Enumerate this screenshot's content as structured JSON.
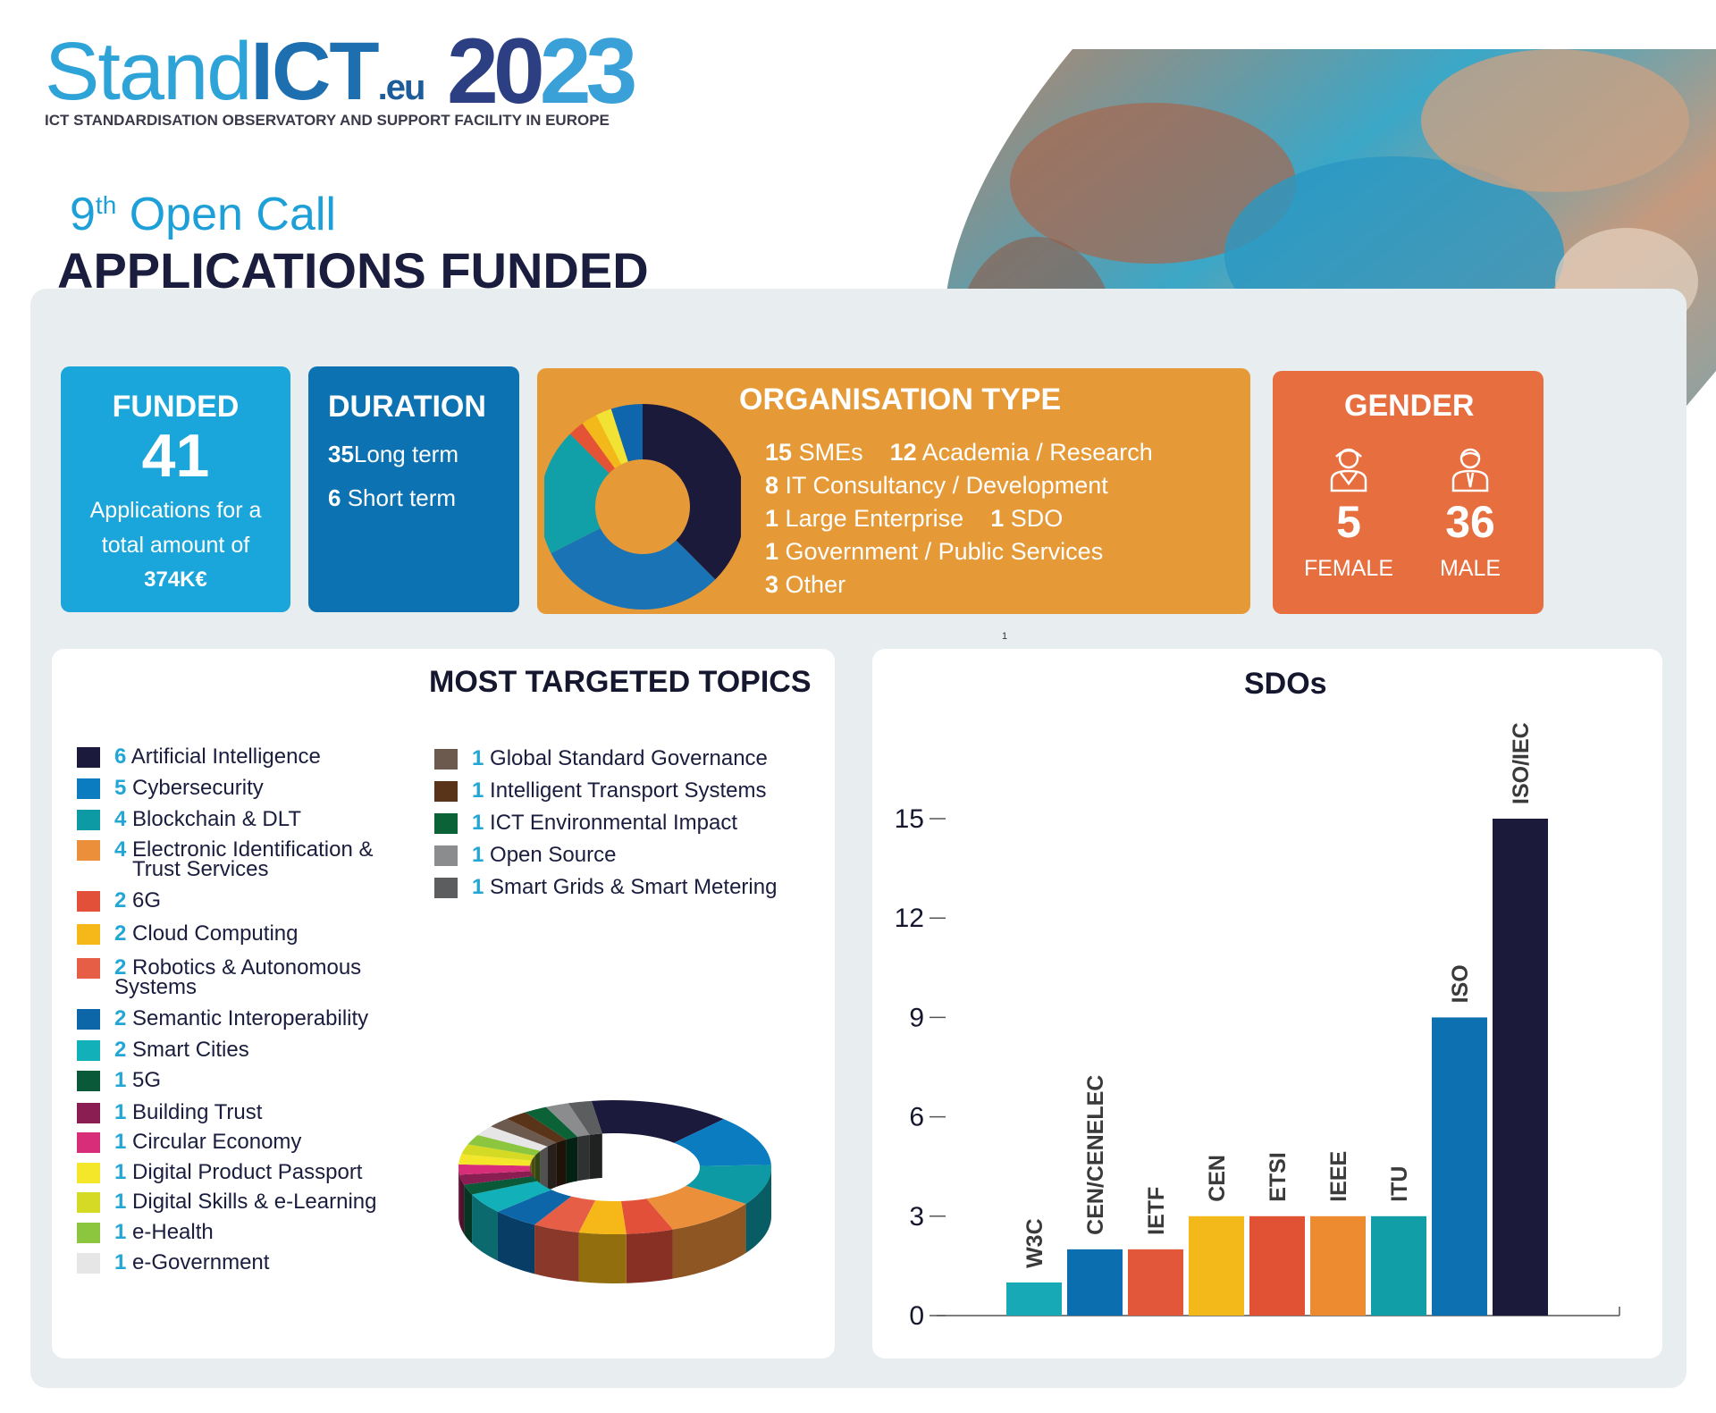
{
  "logo": {
    "brand_stand": "Stand",
    "brand_ict": "ICT",
    "brand_eu": ".eu",
    "year_a": "20",
    "year_b": "23",
    "subtitle": "ICT STANDARDISATION OBSERVATORY AND SUPPORT FACILITY IN EUROPE"
  },
  "call": {
    "ordinal": "9",
    "ordinal_suffix": "th",
    "label": "Open Call"
  },
  "heading": "APPLICATIONS FUNDED",
  "funded": {
    "title": "FUNDED",
    "value": "41",
    "line1": "Applications for a",
    "line2": "total amount of",
    "amount": "374K€"
  },
  "duration": {
    "title": "DURATION",
    "long_num": "35",
    "long_label": "Long term",
    "short_num": "6",
    "short_label": "Short term"
  },
  "org": {
    "title": "ORGANISATION TYPE",
    "rows": [
      {
        "n1": "15",
        "t1": "SMEs",
        "n2": "12",
        "t2": "Academia / Research"
      },
      {
        "n1": "8",
        "t1": "IT Consultancy / Development"
      },
      {
        "n1": "1",
        "t1": "Large Enterprise",
        "n2": "1",
        "t2": "SDO"
      },
      {
        "n1": "1",
        "t1": "Government / Public Services"
      },
      {
        "n1": "3",
        "t1": "Other"
      }
    ]
  },
  "gender": {
    "title": "GENDER",
    "female_value": "5",
    "female_label": "FEMALE",
    "male_value": "36",
    "male_label": "MALE"
  },
  "footnote": "1",
  "topics": {
    "title": "MOST TARGETED TOPICS",
    "items": [
      {
        "n": "6",
        "label": "Artificial Intelligence",
        "color": "#1b1a3c"
      },
      {
        "n": "5",
        "label": "Cybersecurity",
        "color": "#0b7cc0"
      },
      {
        "n": "4",
        "label": "Blockchain & DLT",
        "color": "#0d9aa5"
      },
      {
        "n": "4",
        "label": "Electronic Identification &",
        "label2": "Trust Services",
        "color": "#ec8f3a"
      },
      {
        "n": "2",
        "label": "6G",
        "color": "#e2503a"
      },
      {
        "n": "2",
        "label": "Cloud Computing",
        "color": "#f5b818"
      },
      {
        "n": "2",
        "label": "Robotics & Autonomous",
        "label2": "Systems",
        "color": "#e55e45"
      },
      {
        "n": "2",
        "label": "Semantic Interoperability",
        "color": "#0d66a8"
      },
      {
        "n": "2",
        "label": "Smart Cities",
        "color": "#12b0b8"
      },
      {
        "n": "1",
        "label": "5G",
        "color": "#0a5a3a"
      },
      {
        "n": "1",
        "label": "Building Trust",
        "color": "#8a1d52"
      },
      {
        "n": "1",
        "label": "Circular Economy",
        "color": "#d82d78"
      },
      {
        "n": "1",
        "label": "Digital Product Passport",
        "color": "#f4e628"
      },
      {
        "n": "1",
        "label": "Digital Skills & e-Learning",
        "color": "#d5da24"
      },
      {
        "n": "1",
        "label": "e-Health",
        "color": "#8cc63f"
      },
      {
        "n": "1",
        "label": "e-Government",
        "color": "#e6e6e6"
      },
      {
        "n": "1",
        "label": "Global Standard Governance",
        "color": "#6d5a4e"
      },
      {
        "n": "1",
        "label": "Intelligent Transport Systems",
        "color": "#5a3418"
      },
      {
        "n": "1",
        "label": "ICT Environmental Impact",
        "color": "#0b6236"
      },
      {
        "n": "1",
        "label": "Open Source",
        "color": "#8a8c8e"
      },
      {
        "n": "1",
        "label": "Smart Grids & Smart Metering",
        "color": "#5b5d5f"
      }
    ]
  },
  "chart_data": {
    "type": "bar",
    "title": "SDOs",
    "categories": [
      "W3C",
      "CEN/CENELEC",
      "IETF",
      "CEN",
      "ETSI",
      "IEEE",
      "ITU",
      "ISO",
      "ISO/IEC"
    ],
    "values": [
      1,
      2,
      2,
      3,
      3,
      3,
      3,
      9,
      15
    ],
    "colors": [
      "#17aab6",
      "#0b6eaf",
      "#e2573a",
      "#f3b91a",
      "#e05233",
      "#ed8b31",
      "#119ea6",
      "#0d71b1",
      "#1c1a3b"
    ],
    "yticks": [
      0,
      3,
      6,
      9,
      12,
      15
    ],
    "ylim": [
      0,
      15
    ],
    "xlabel": "",
    "ylabel": ""
  }
}
